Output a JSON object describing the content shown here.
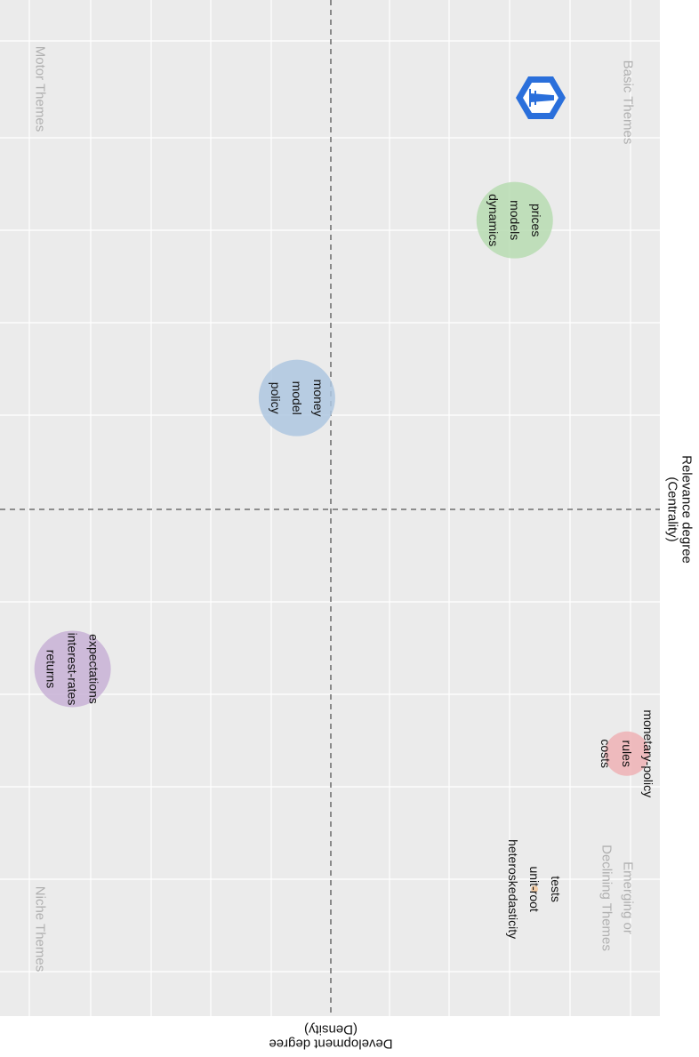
{
  "chart_data": {
    "type": "scatter",
    "orientation": "rotated 90 degrees clockwise",
    "xlabel": [
      "Relevance degree",
      "(Centrality)"
    ],
    "ylabel": [
      "Development degree",
      "(Density)"
    ],
    "grid": true,
    "quadrants": {
      "top_right": "Motor Themes",
      "top_left": [
        "Niche Themes"
      ],
      "bottom_left": [
        "Emerging or",
        "Declining Themes"
      ],
      "bottom_right": [
        "Basic Themes"
      ]
    },
    "clusters": [
      {
        "labels": [
          "expectations",
          "interest-rates",
          "returns"
        ],
        "centrality": 4.1,
        "density": 8.9,
        "size": "medium",
        "color": "#c8b1d6"
      },
      {
        "labels": [
          "money",
          "model",
          "policy"
        ],
        "centrality": 7.3,
        "density": 5.5,
        "size": "medium",
        "color": "#aec7e0"
      },
      {
        "labels": [
          "prices",
          "models",
          "dynamics"
        ],
        "centrality": 9.4,
        "density": 2.2,
        "size": "medium",
        "color": "#b7dcb1"
      },
      {
        "labels": [
          "monetary-policy",
          "rules",
          "costs"
        ],
        "centrality": 3.1,
        "density": 0.5,
        "size": "small",
        "color": "#efb2b5"
      },
      {
        "labels": [
          "tests",
          "unit-root",
          "heteroskedasticity"
        ],
        "centrality": 1.5,
        "density": 1.9,
        "size": "tiny",
        "color": "#f3c79a"
      }
    ]
  }
}
